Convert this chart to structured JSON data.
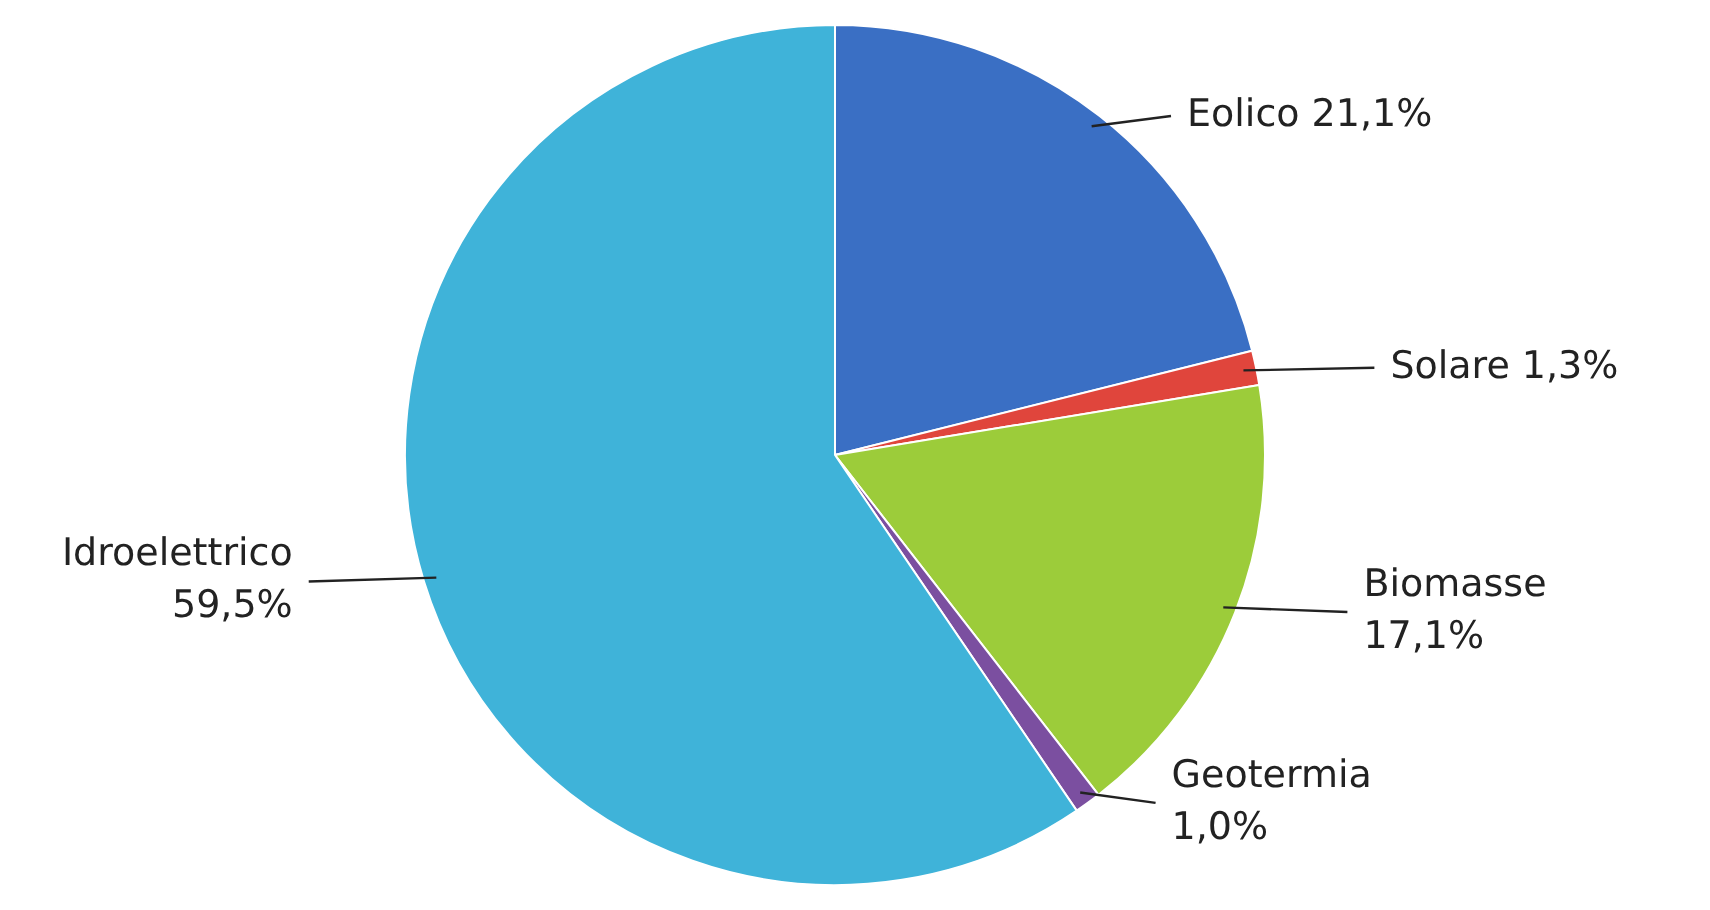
{
  "chart_data": {
    "type": "pie",
    "categories": [
      "Eolico",
      "Solare",
      "Biomasse",
      "Geotermia",
      "Idroelettrico"
    ],
    "values": [
      21.1,
      1.3,
      17.1,
      1.0,
      59.5
    ],
    "value_labels": [
      "21,1%",
      "1,3%",
      "17,1%",
      "1,0%",
      "59,5%"
    ],
    "colors": [
      "#3a6fc4",
      "#e0453c",
      "#9ccc3a",
      "#7b4fa0",
      "#3fb3d9"
    ],
    "legend": false
  }
}
